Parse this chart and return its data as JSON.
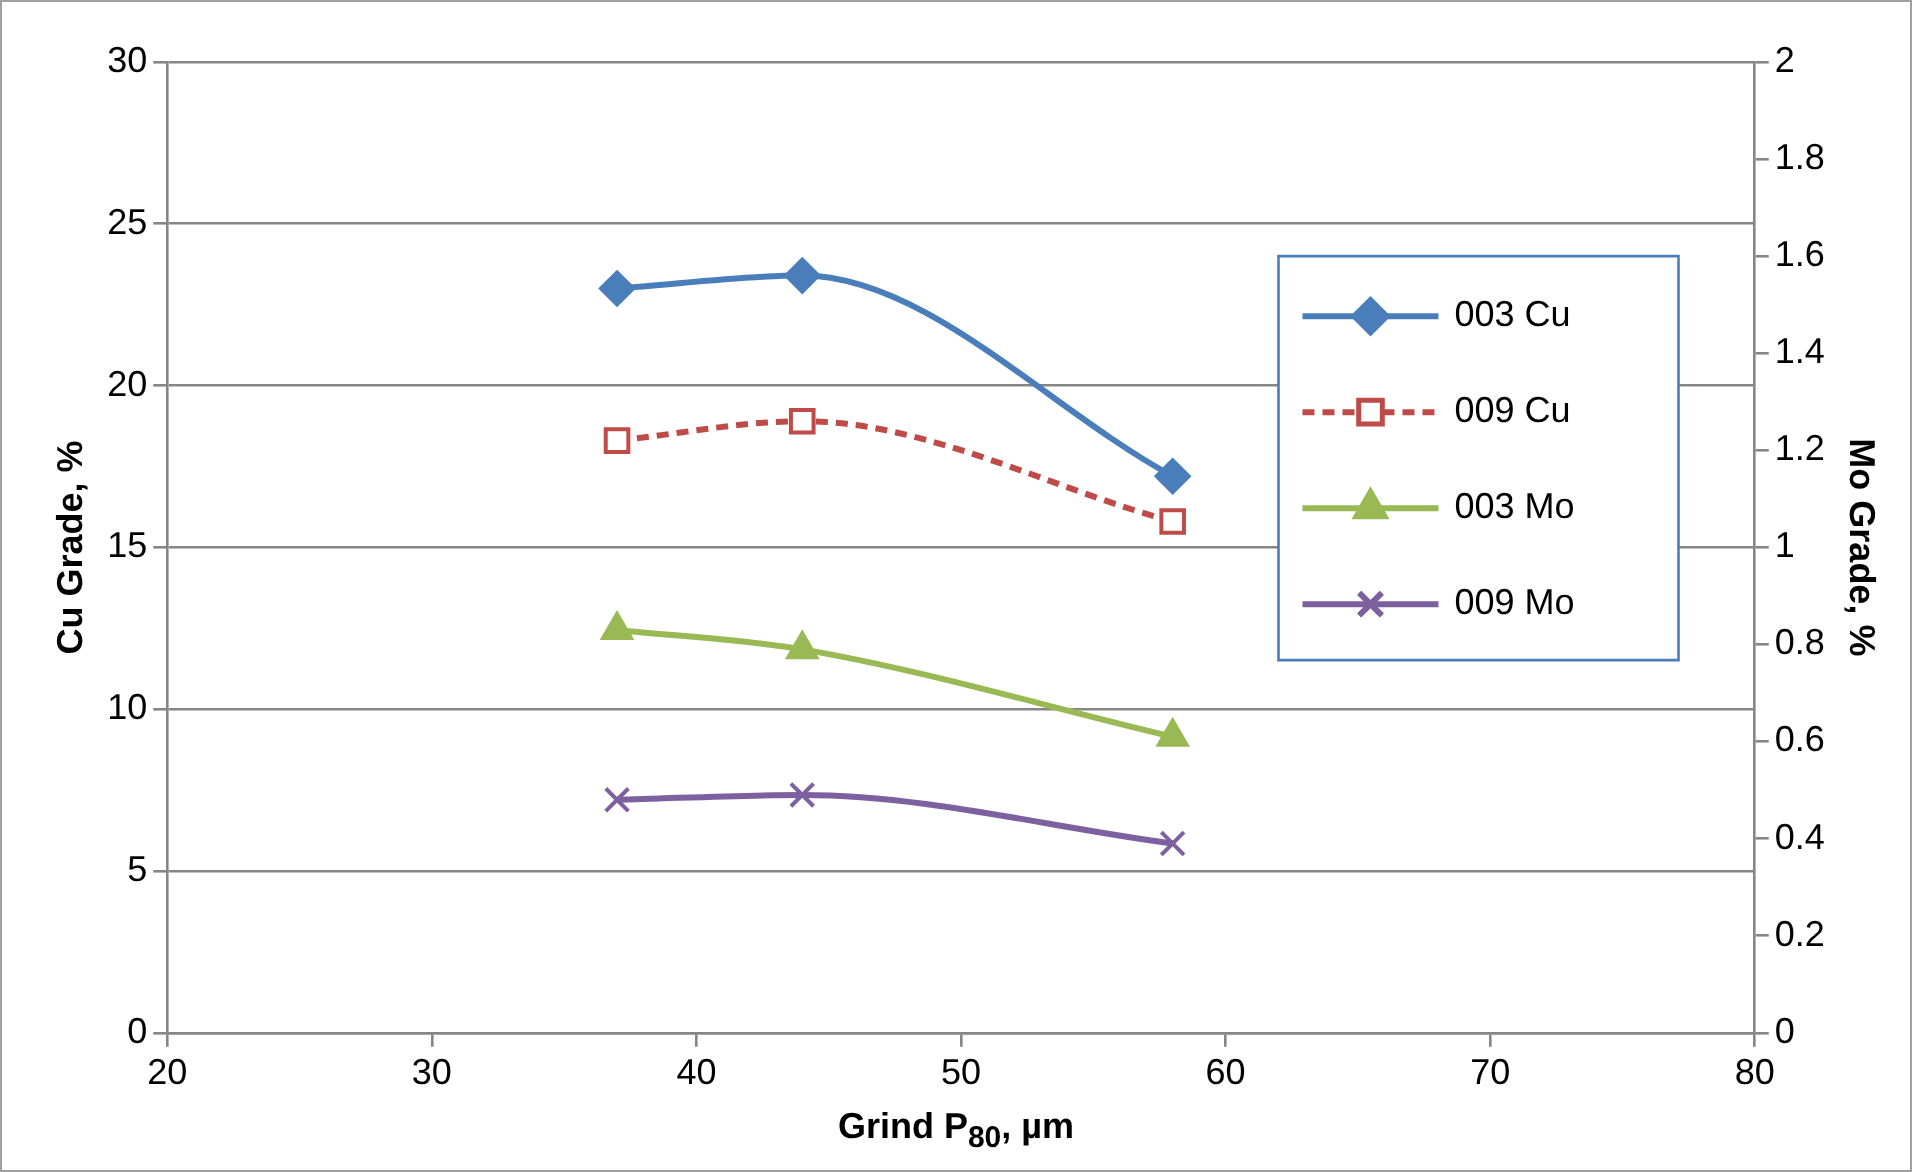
{
  "chart_data": {
    "type": "line",
    "xlabel": "Grind P$_{80}$, µm",
    "ylabel": "Cu Grade, %",
    "y2label": "Mo Grade, %",
    "xlim": [
      20,
      80
    ],
    "xticks": [
      20,
      30,
      40,
      50,
      60,
      70,
      80
    ],
    "ylim": [
      0,
      30
    ],
    "yticks": [
      0,
      5,
      10,
      15,
      20,
      25,
      30
    ],
    "y2lim": [
      0,
      2
    ],
    "y2ticks": [
      0,
      {
        "value": 0.2,
        "label": "0.2"
      },
      {
        "value": 0.4,
        "label": "0.4"
      },
      {
        "value": 0.6,
        "label": "0.6"
      },
      {
        "value": 0.8,
        "label": "0.8"
      },
      1,
      {
        "value": 1.2,
        "label": "1.2"
      },
      {
        "value": 1.4,
        "label": "1.4"
      },
      {
        "value": 1.6,
        "label": "1.6"
      },
      {
        "value": 1.8,
        "label": "1.8"
      },
      2
    ],
    "grid": "y",
    "legend": "right",
    "x": [
      37,
      44,
      58
    ],
    "series": [
      {
        "name": "003 Cu",
        "color": "#4a7ebb",
        "values": [
          23.0,
          23.4,
          17.2
        ],
        "marker": "diamond",
        "line_style": "solid"
      },
      {
        "name": "009 Cu",
        "color": "#be4b48",
        "values": [
          18.3,
          18.9,
          15.8
        ],
        "marker": "square",
        "line_style": "dashed"
      },
      {
        "name": "003 Mo",
        "color": "#98b954",
        "values": [
          0.83,
          0.79,
          0.61
        ],
        "marker": "triangle",
        "line_style": "solid",
        "axis": "y2"
      },
      {
        "name": "009 Mo",
        "color": "#7d60a0",
        "values": [
          0.48,
          0.49,
          0.39
        ],
        "marker": "cross",
        "line_style": "solid",
        "axis": "y2"
      }
    ]
  }
}
